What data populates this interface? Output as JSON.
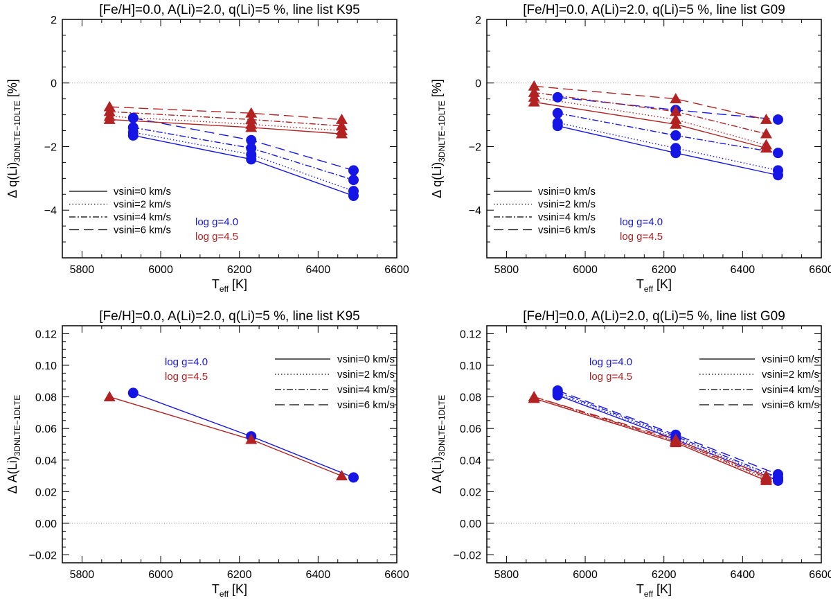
{
  "colors": {
    "logg40": "#1515e6",
    "logg45": "#b22222",
    "axis": "#000000",
    "zero": "#888888"
  },
  "legend": {
    "vsini_labels_a": [
      "vsini=0 km/s",
      "vsini=2 km/s",
      "vsini=4 km/s",
      "vsini=6 km/s"
    ],
    "vsini_labels_b": [
      "vsini=0  km/s",
      "vsini=2  km/s",
      "vsini=4  km/s",
      "vsini=6  km/s"
    ],
    "vsini_labels_c": [
      "vsini=0 km/s",
      "vsini=2 km/s",
      "vsini=4 km/s",
      "vsini=6 km/s"
    ],
    "logg_labels": [
      "log g=4.0",
      "log g=4.5"
    ]
  },
  "chart_data": [
    {
      "type": "line",
      "title": "[Fe/H]=0.0, A(Li)=2.0, q(Li)=5 %, line list K95",
      "xlabel_main": "T",
      "xlabel_sub": "eff",
      "xlabel_unit": " [K]",
      "ylabel_main": "Δ q(Li)",
      "ylabel_sub": "3DNLTE−1DLTE",
      "ylabel_unit": " [%]",
      "xlim": [
        5750,
        6600
      ],
      "ylim": [
        -5.5,
        2
      ],
      "xticks": [
        5800,
        6000,
        6200,
        6400,
        6600
      ],
      "xtick_labels": [
        "5800",
        "6000",
        "6200",
        "6400",
        "6600"
      ],
      "yticks": [
        -4,
        -2,
        0,
        2
      ],
      "ytick_labels": [
        "−4",
        "−2",
        "0",
        "2"
      ],
      "zero_line": 0,
      "legend_style": "a",
      "series": [
        {
          "name": "log g=4.0",
          "vsini": 0,
          "marker": "circle",
          "x": [
            5930,
            6230,
            6490
          ],
          "y": [
            -1.65,
            -2.4,
            -3.55
          ]
        },
        {
          "name": "log g=4.0",
          "vsini": 2,
          "marker": "circle",
          "x": [
            5930,
            6230,
            6490
          ],
          "y": [
            -1.55,
            -2.25,
            -3.4
          ]
        },
        {
          "name": "log g=4.0",
          "vsini": 4,
          "marker": "circle",
          "x": [
            5930,
            6230,
            6490
          ],
          "y": [
            -1.4,
            -2.05,
            -3.05
          ]
        },
        {
          "name": "log g=4.0",
          "vsini": 6,
          "marker": "circle",
          "x": [
            5930,
            6230,
            6490
          ],
          "y": [
            -1.1,
            -1.8,
            -2.75
          ]
        },
        {
          "name": "log g=4.5",
          "vsini": 0,
          "marker": "triangle",
          "x": [
            5870,
            6230,
            6460
          ],
          "y": [
            -1.15,
            -1.4,
            -1.6
          ]
        },
        {
          "name": "log g=4.5",
          "vsini": 2,
          "marker": "triangle",
          "x": [
            5870,
            6230,
            6460
          ],
          "y": [
            -1.05,
            -1.3,
            -1.5
          ]
        },
        {
          "name": "log g=4.5",
          "vsini": 4,
          "marker": "triangle",
          "x": [
            5870,
            6230,
            6460
          ],
          "y": [
            -0.9,
            -1.15,
            -1.35
          ]
        },
        {
          "name": "log g=4.5",
          "vsini": 6,
          "marker": "triangle",
          "x": [
            5870,
            6230,
            6460
          ],
          "y": [
            -0.75,
            -0.95,
            -1.15
          ]
        }
      ]
    },
    {
      "type": "line",
      "title": "[Fe/H]=0.0, A(Li)=2.0, q(Li)=5 %, line list G09",
      "xlabel_main": "T",
      "xlabel_sub": "eff",
      "xlabel_unit": " [K]",
      "ylabel_main": "Δ q(Li)",
      "ylabel_sub": "3DNLTE−1DLTE",
      "ylabel_unit": " [%]",
      "xlim": [
        5750,
        6600
      ],
      "ylim": [
        -5.5,
        2
      ],
      "xticks": [
        5800,
        6000,
        6200,
        6400,
        6600
      ],
      "xtick_labels": [
        "5800",
        "6000",
        "6200",
        "6400",
        "6600"
      ],
      "yticks": [
        -4,
        -2,
        0,
        2
      ],
      "ytick_labels": [
        "−4",
        "−2",
        "0",
        "2"
      ],
      "zero_line": 0,
      "legend_style": "c",
      "series": [
        {
          "name": "log g=4.0",
          "vsini": 0,
          "marker": "circle",
          "x": [
            5930,
            6230,
            6490
          ],
          "y": [
            -1.35,
            -2.2,
            -2.9
          ]
        },
        {
          "name": "log g=4.0",
          "vsini": 2,
          "marker": "circle",
          "x": [
            5930,
            6230,
            6490
          ],
          "y": [
            -1.25,
            -2.05,
            -2.75
          ]
        },
        {
          "name": "log g=4.0",
          "vsini": 4,
          "marker": "circle",
          "x": [
            5930,
            6230,
            6490
          ],
          "y": [
            -0.95,
            -1.65,
            -2.2
          ]
        },
        {
          "name": "log g=4.0",
          "vsini": 6,
          "marker": "circle",
          "x": [
            5930,
            6230,
            6490
          ],
          "y": [
            -0.45,
            -0.85,
            -1.15
          ]
        },
        {
          "name": "log g=4.5",
          "vsini": 0,
          "marker": "triangle",
          "x": [
            5870,
            6230,
            6460
          ],
          "y": [
            -0.6,
            -1.3,
            -2.05
          ]
        },
        {
          "name": "log g=4.5",
          "vsini": 2,
          "marker": "triangle",
          "x": [
            5870,
            6230,
            6460
          ],
          "y": [
            -0.45,
            -1.15,
            -1.95
          ]
        },
        {
          "name": "log g=4.5",
          "vsini": 4,
          "marker": "triangle",
          "x": [
            5870,
            6230,
            6460
          ],
          "y": [
            -0.3,
            -0.9,
            -1.6
          ]
        },
        {
          "name": "log g=4.5",
          "vsini": 6,
          "marker": "triangle",
          "x": [
            5870,
            6230,
            6460
          ],
          "y": [
            -0.1,
            -0.5,
            -1.15
          ]
        }
      ]
    },
    {
      "type": "line",
      "title": "[Fe/H]=0.0, A(Li)=2.0, q(Li)=5 %, line list K95",
      "xlabel_main": "T",
      "xlabel_sub": "eff",
      "xlabel_unit": " [K]",
      "ylabel_main": "Δ A(Li)",
      "ylabel_sub": "3DNLTE−1DLTE",
      "ylabel_unit": "",
      "xlim": [
        5750,
        6600
      ],
      "ylim": [
        -0.025,
        0.125
      ],
      "xticks": [
        5800,
        6000,
        6200,
        6400,
        6600
      ],
      "xtick_labels": [
        "5800",
        "6000",
        "6200",
        "6400",
        "6600"
      ],
      "yticks": [
        -0.02,
        0,
        0.02,
        0.04,
        0.06,
        0.08,
        0.1,
        0.12
      ],
      "ytick_labels": [
        "−0.02",
        "0.00",
        "0.02",
        "0.04",
        "0.06",
        "0.08",
        "0.10",
        "0.12"
      ],
      "zero_line": 0,
      "legend_style": "b",
      "series": [
        {
          "name": "log g=4.0",
          "vsini": 0,
          "marker": "circle",
          "x": [
            5930,
            6230,
            6490
          ],
          "y": [
            0.0825,
            0.055,
            0.029
          ]
        },
        {
          "name": "log g=4.5",
          "vsini": 0,
          "marker": "triangle",
          "x": [
            5870,
            6230,
            6460
          ],
          "y": [
            0.08,
            0.053,
            0.03
          ]
        }
      ]
    },
    {
      "type": "line",
      "title": "[Fe/H]=0.0, A(Li)=2.0, q(Li)=5 %, line list G09",
      "xlabel_main": "T",
      "xlabel_sub": "eff",
      "xlabel_unit": " [K]",
      "ylabel_main": "Δ A(Li)",
      "ylabel_sub": "3DNLTE−1DLTE",
      "ylabel_unit": "",
      "xlim": [
        5750,
        6600
      ],
      "ylim": [
        -0.025,
        0.125
      ],
      "xticks": [
        5800,
        6000,
        6200,
        6400,
        6600
      ],
      "xtick_labels": [
        "5800",
        "6000",
        "6200",
        "6400",
        "6600"
      ],
      "yticks": [
        -0.02,
        0,
        0.02,
        0.04,
        0.06,
        0.08,
        0.1,
        0.12
      ],
      "ytick_labels": [
        "−0.02",
        "0.00",
        "0.02",
        "0.04",
        "0.06",
        "0.08",
        "0.10",
        "0.12"
      ],
      "zero_line": 0,
      "legend_style": "c",
      "series": [
        {
          "name": "log g=4.0",
          "vsini": 0,
          "marker": "circle",
          "x": [
            5930,
            6230,
            6490
          ],
          "y": [
            0.081,
            0.053,
            0.027
          ]
        },
        {
          "name": "log g=4.0",
          "vsini": 2,
          "marker": "circle",
          "x": [
            5930,
            6230,
            6490
          ],
          "y": [
            0.082,
            0.054,
            0.028
          ]
        },
        {
          "name": "log g=4.0",
          "vsini": 4,
          "marker": "circle",
          "x": [
            5930,
            6230,
            6490
          ],
          "y": [
            0.083,
            0.055,
            0.029
          ]
        },
        {
          "name": "log g=4.0",
          "vsini": 6,
          "marker": "circle",
          "x": [
            5930,
            6230,
            6490
          ],
          "y": [
            0.084,
            0.056,
            0.031
          ]
        },
        {
          "name": "log g=4.5",
          "vsini": 0,
          "marker": "triangle",
          "x": [
            5870,
            6230,
            6460
          ],
          "y": [
            0.079,
            0.051,
            0.027
          ]
        },
        {
          "name": "log g=4.5",
          "vsini": 2,
          "marker": "triangle",
          "x": [
            5870,
            6230,
            6460
          ],
          "y": [
            0.079,
            0.052,
            0.028
          ]
        },
        {
          "name": "log g=4.5",
          "vsini": 4,
          "marker": "triangle",
          "x": [
            5870,
            6230,
            6460
          ],
          "y": [
            0.08,
            0.052,
            0.029
          ]
        },
        {
          "name": "log g=4.5",
          "vsini": 6,
          "marker": "triangle",
          "x": [
            5870,
            6230,
            6460
          ],
          "y": [
            0.08,
            0.053,
            0.03
          ]
        }
      ]
    }
  ]
}
